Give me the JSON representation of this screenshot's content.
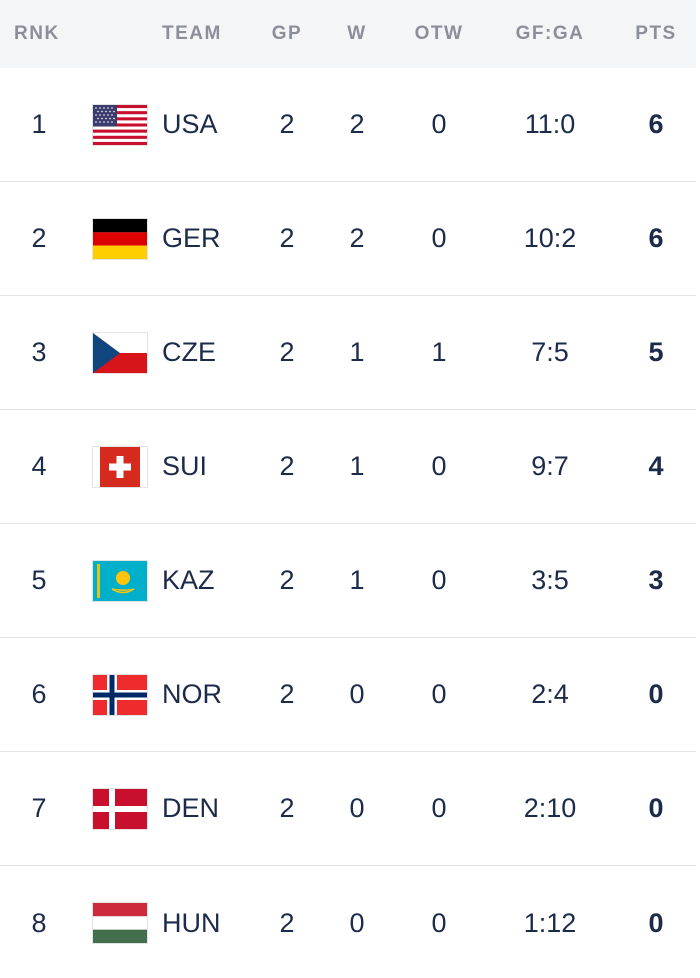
{
  "headers": {
    "rnk": "RNK",
    "team": "TEAM",
    "gp": "GP",
    "w": "W",
    "otw": "OTW",
    "gfga": "GF:GA",
    "pts": "PTS"
  },
  "rows": [
    {
      "rank": "1",
      "team": "USA",
      "gp": "2",
      "w": "2",
      "otw": "0",
      "gfga": "11:0",
      "pts": "6",
      "flag_icon": "usa-flag-icon"
    },
    {
      "rank": "2",
      "team": "GER",
      "gp": "2",
      "w": "2",
      "otw": "0",
      "gfga": "10:2",
      "pts": "6",
      "flag_icon": "germany-flag-icon"
    },
    {
      "rank": "3",
      "team": "CZE",
      "gp": "2",
      "w": "1",
      "otw": "1",
      "gfga": "7:5",
      "pts": "5",
      "flag_icon": "czechia-flag-icon"
    },
    {
      "rank": "4",
      "team": "SUI",
      "gp": "2",
      "w": "1",
      "otw": "0",
      "gfga": "9:7",
      "pts": "4",
      "flag_icon": "switzerland-flag-icon"
    },
    {
      "rank": "5",
      "team": "KAZ",
      "gp": "2",
      "w": "1",
      "otw": "0",
      "gfga": "3:5",
      "pts": "3",
      "flag_icon": "kazakhstan-flag-icon"
    },
    {
      "rank": "6",
      "team": "NOR",
      "gp": "2",
      "w": "0",
      "otw": "0",
      "gfga": "2:4",
      "pts": "0",
      "flag_icon": "norway-flag-icon"
    },
    {
      "rank": "7",
      "team": "DEN",
      "gp": "2",
      "w": "0",
      "otw": "0",
      "gfga": "2:10",
      "pts": "0",
      "flag_icon": "denmark-flag-icon"
    },
    {
      "rank": "8",
      "team": "HUN",
      "gp": "2",
      "w": "0",
      "otw": "0",
      "gfga": "1:12",
      "pts": "0",
      "flag_icon": "hungary-flag-icon"
    }
  ],
  "colors": {
    "text": "#1c2b4a",
    "header_text": "#8a8f99",
    "header_bg": "#f4f5f7",
    "divider": "#e1e3e6"
  }
}
